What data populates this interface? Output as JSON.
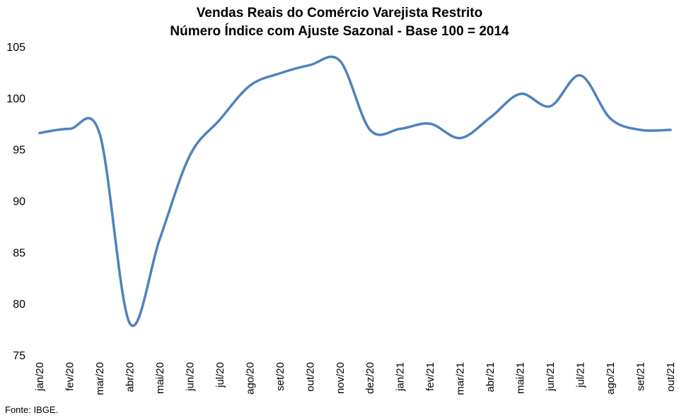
{
  "chart_data": {
    "type": "line",
    "title": "Vendas Reais do Comércio Varejista Restrito",
    "subtitle": "Número Índice com Ajuste Sazonal - Base 100 = 2014",
    "xlabel": "",
    "ylabel": "",
    "ylim": [
      75,
      105
    ],
    "yticks": [
      75,
      80,
      85,
      90,
      95,
      100,
      105
    ],
    "grid": false,
    "legend": "none",
    "categories": [
      "jan/20",
      "fev/20",
      "mar/20",
      "abr/20",
      "mai/20",
      "jun/20",
      "jul/20",
      "ago/20",
      "set/20",
      "out/20",
      "nov/20",
      "dez/20",
      "jan/21",
      "fev/21",
      "mar/21",
      "abr/21",
      "mai/21",
      "jun/21",
      "jul/21",
      "ago/21",
      "set/21",
      "out/21"
    ],
    "series": [
      {
        "values": [
          96.6,
          97.0,
          96.5,
          78.1,
          86.3,
          94.4,
          97.9,
          101.2,
          102.4,
          103.2,
          103.6,
          96.9,
          97.0,
          97.5,
          96.1,
          98.1,
          100.4,
          99.2,
          102.2,
          98.0,
          96.9,
          96.9
        ],
        "color": "#4f81bd"
      }
    ],
    "source": "Fonte: IBGE."
  }
}
